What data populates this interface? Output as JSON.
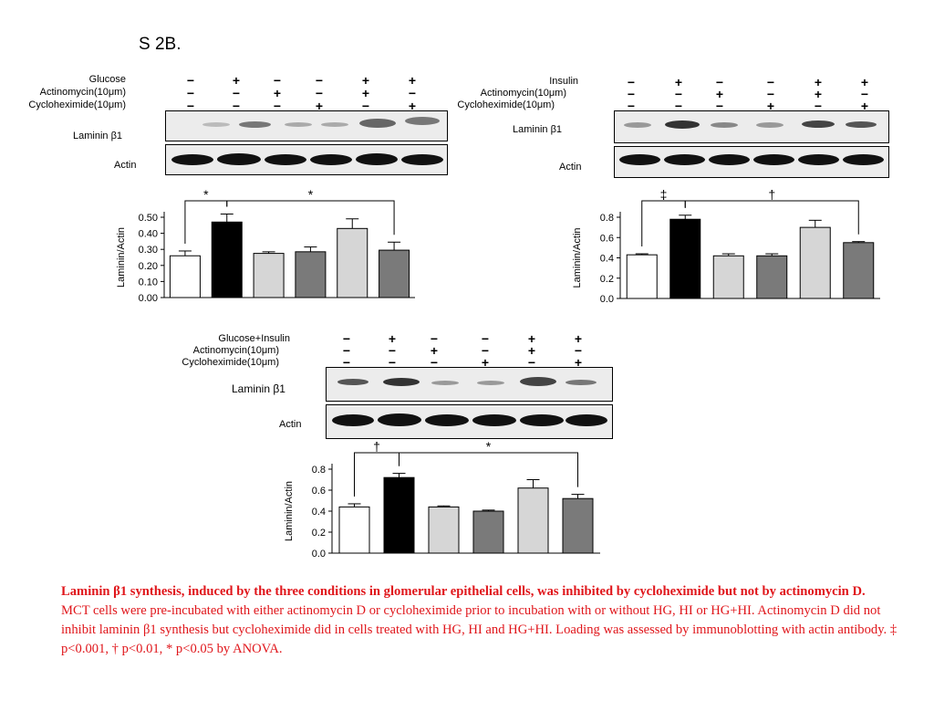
{
  "figure_title": "S 2B.",
  "panels": [
    {
      "id": "glucose",
      "rows": [
        {
          "label": "Glucose",
          "signs": [
            "−",
            "+",
            "−",
            "−",
            "+",
            "+"
          ]
        },
        {
          "label": "Actinomycin(10μm)",
          "signs": [
            "−",
            "−",
            "+",
            "−",
            "+",
            "−"
          ]
        },
        {
          "label": "Cycloheximide(10μm)",
          "signs": [
            "−",
            "−",
            "−",
            "+",
            "−",
            "+"
          ]
        }
      ],
      "blot_labels": {
        "laminin": "Laminin β1",
        "actin": "Actin"
      }
    },
    {
      "id": "insulin",
      "rows": [
        {
          "label": "Insulin",
          "signs": [
            "−",
            "+",
            "−",
            "−",
            "+",
            "+"
          ]
        },
        {
          "label": "Actinomycin(10μm)",
          "signs": [
            "−",
            "−",
            "+",
            "−",
            "+",
            "−"
          ]
        },
        {
          "label": "Cycloheximide(10μm)",
          "signs": [
            "−",
            "−",
            "−",
            "+",
            "−",
            "+"
          ]
        }
      ],
      "blot_labels": {
        "laminin": "Laminin β1",
        "actin": "Actin"
      }
    },
    {
      "id": "glucose-insulin",
      "rows": [
        {
          "label": "Glucose+Insulin",
          "signs": [
            "−",
            "+",
            "−",
            "−",
            "+",
            "+"
          ]
        },
        {
          "label": "Actinomycin(10μm)",
          "signs": [
            "−",
            "−",
            "+",
            "−",
            "+",
            "−"
          ]
        },
        {
          "label": "Cycloheximide(10μm)",
          "signs": [
            "−",
            "−",
            "−",
            "+",
            "−",
            "+"
          ]
        }
      ],
      "blot_labels": {
        "laminin": "Laminin β1",
        "actin": "Actin"
      }
    }
  ],
  "chart_data": [
    {
      "type": "bar",
      "ylabel": "Laminin/Actin",
      "ylim": [
        0,
        0.5
      ],
      "yticks": [
        "0.00",
        "0.10",
        "0.20",
        "0.30",
        "0.40",
        "0.50"
      ],
      "values": [
        0.26,
        0.47,
        0.275,
        0.285,
        0.43,
        0.295
      ],
      "errors": [
        0.03,
        0.05,
        0.01,
        0.03,
        0.06,
        0.05
      ],
      "bar_colors": [
        "#ffffff",
        "#000000",
        "#d6d6d6",
        "#7a7a7a",
        "#d6d6d6",
        "#7a7a7a"
      ],
      "annotations": [
        {
          "from": 0,
          "to": 1,
          "label": "*"
        },
        {
          "from": 1,
          "to": 5,
          "label": "*"
        }
      ]
    },
    {
      "type": "bar",
      "ylabel": "Laminin/Actin",
      "ylim": [
        0,
        0.8
      ],
      "yticks": [
        "0.0",
        "0.2",
        "0.4",
        "0.6",
        "0.8"
      ],
      "values": [
        0.43,
        0.78,
        0.42,
        0.42,
        0.7,
        0.55
      ],
      "errors": [
        0.01,
        0.04,
        0.02,
        0.02,
        0.07,
        0.01
      ],
      "bar_colors": [
        "#ffffff",
        "#000000",
        "#d6d6d6",
        "#7a7a7a",
        "#d6d6d6",
        "#7a7a7a"
      ],
      "annotations": [
        {
          "from": 0,
          "to": 1,
          "label": "‡"
        },
        {
          "from": 1,
          "to": 5,
          "label": "†"
        }
      ]
    },
    {
      "type": "bar",
      "ylabel": "Laminin/Actin",
      "ylim": [
        0,
        0.8
      ],
      "yticks": [
        "0.0",
        "0.2",
        "0.4",
        "0.6",
        "0.8"
      ],
      "values": [
        0.44,
        0.72,
        0.44,
        0.4,
        0.62,
        0.52
      ],
      "errors": [
        0.03,
        0.04,
        0.01,
        0.01,
        0.08,
        0.04
      ],
      "bar_colors": [
        "#ffffff",
        "#000000",
        "#d6d6d6",
        "#7a7a7a",
        "#d6d6d6",
        "#7a7a7a"
      ],
      "annotations": [
        {
          "from": 0,
          "to": 1,
          "label": "†"
        },
        {
          "from": 1,
          "to": 5,
          "label": "*"
        }
      ]
    }
  ],
  "caption": {
    "bold": "Laminin β1 synthesis, induced by the three conditions in glomerular epithelial cells, was inhibited by cycloheximide but not by actinomycin D.",
    "body": "MCT cells were pre-incubated with either actinomycin D or cycloheximide prior to incubation with or without HG, HI or HG+HI. Actinomycin D did not inhibit laminin β1 synthesis but cycloheximide did in cells treated with HG, HI and HG+HI. Loading was assessed by immunoblotting with actin antibody. ‡ p<0.001, † p<0.01, * p<0.05 by ANOVA."
  }
}
